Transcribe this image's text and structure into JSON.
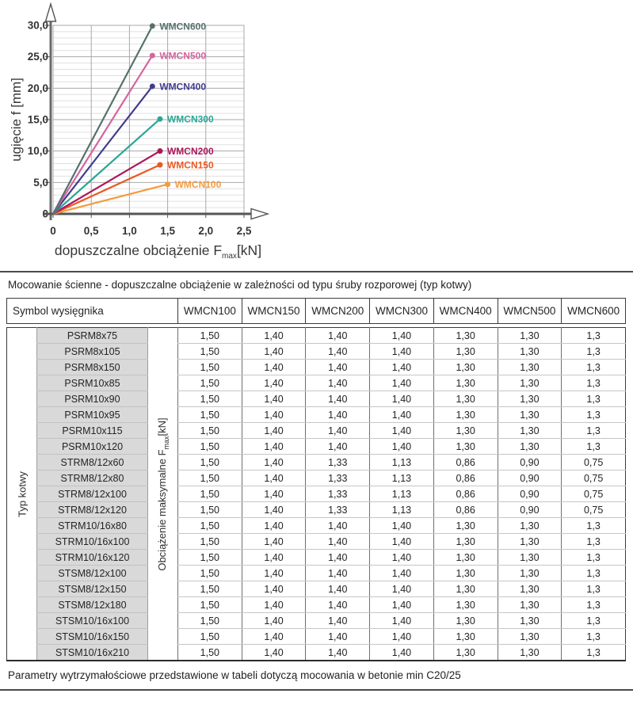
{
  "page": {
    "captions": {
      "top": "Mocowanie ścienne - dopuszczalne obciążenie w zależności od typu śruby rozporowej (typ kotwy)",
      "bottom": "Parametry wytrzymałościowe przedstawione w tabeli dotyczą mocowania w betonie min C20/25"
    }
  },
  "chart_data": {
    "type": "line",
    "title": "",
    "xlabel": {
      "main": "dopuszczalne obciążenie F",
      "sub": "max",
      "unit": "[kN]"
    },
    "ylabel": "ugięcie f [mm]",
    "xlim": [
      0,
      2.5
    ],
    "ylim": [
      0,
      30
    ],
    "x_tick_values": [
      0,
      0.5,
      1.0,
      1.5,
      2.0,
      2.5
    ],
    "x_tick_labels": [
      "0",
      "0,5",
      "1,0",
      "1,5",
      "2,0",
      "2,5"
    ],
    "y_tick_values": [
      0,
      5,
      10,
      15,
      20,
      25,
      30
    ],
    "y_tick_labels": [
      "0",
      "5,0",
      "10,0",
      "15,0",
      "20,0",
      "25,0",
      "30,0"
    ],
    "grid": {
      "x_major": 0.5,
      "y_major": 5,
      "y_minor": 1,
      "on": true
    },
    "legend_position": "inline-labels-at-line-ends",
    "series": [
      {
        "name": "WMCN100",
        "color": "#f59b3c",
        "points": [
          [
            0,
            0
          ],
          [
            1.5,
            4.7
          ]
        ]
      },
      {
        "name": "WMCN150",
        "color": "#e85a24",
        "points": [
          [
            0,
            0
          ],
          [
            1.4,
            7.8
          ]
        ]
      },
      {
        "name": "WMCN200",
        "color": "#ab1659",
        "points": [
          [
            0,
            0
          ],
          [
            1.4,
            10.0
          ]
        ]
      },
      {
        "name": "WMCN300",
        "color": "#2aa795",
        "points": [
          [
            0,
            0
          ],
          [
            1.4,
            15.1
          ]
        ]
      },
      {
        "name": "WMCN400",
        "color": "#403c8e",
        "points": [
          [
            0,
            0
          ],
          [
            1.3,
            20.3
          ]
        ]
      },
      {
        "name": "WMCN500",
        "color": "#d4659e",
        "points": [
          [
            0,
            0
          ],
          [
            1.3,
            25.2
          ]
        ]
      },
      {
        "name": "WMCN600",
        "color": "#56716d",
        "points": [
          [
            0,
            0
          ],
          [
            1.3,
            29.9
          ]
        ]
      }
    ]
  },
  "table": {
    "symbol_header": "Symbol wysięgnika",
    "models": [
      "WMCN100",
      "WMCN150",
      "WMCN200",
      "WMCN300",
      "WMCN400",
      "WMCN500",
      "WMCN600"
    ],
    "group_label": "Typ kotwy",
    "load_label": {
      "main": "Obciążenie maksymalne F",
      "sub": "max",
      "unit": "[kN]"
    },
    "rows": [
      {
        "name": "PSRM8x75",
        "values": [
          "1,50",
          "1,40",
          "1,40",
          "1,40",
          "1,30",
          "1,30",
          "1,3"
        ]
      },
      {
        "name": "PSRM8x105",
        "values": [
          "1,50",
          "1,40",
          "1,40",
          "1,40",
          "1,30",
          "1,30",
          "1,3"
        ]
      },
      {
        "name": "PSRM8x150",
        "values": [
          "1,50",
          "1,40",
          "1,40",
          "1,40",
          "1,30",
          "1,30",
          "1,3"
        ]
      },
      {
        "name": "PSRM10x85",
        "values": [
          "1,50",
          "1,40",
          "1,40",
          "1,40",
          "1,30",
          "1,30",
          "1,3"
        ]
      },
      {
        "name": "PSRM10x90",
        "values": [
          "1,50",
          "1,40",
          "1,40",
          "1,40",
          "1,30",
          "1,30",
          "1,3"
        ]
      },
      {
        "name": "PSRM10x95",
        "values": [
          "1,50",
          "1,40",
          "1,40",
          "1,40",
          "1,30",
          "1,30",
          "1,3"
        ]
      },
      {
        "name": "PSRM10x115",
        "values": [
          "1,50",
          "1,40",
          "1,40",
          "1,40",
          "1,30",
          "1,30",
          "1,3"
        ]
      },
      {
        "name": "PSRM10x120",
        "values": [
          "1,50",
          "1,40",
          "1,40",
          "1,40",
          "1,30",
          "1,30",
          "1,3"
        ]
      },
      {
        "name": "STRM8/12x60",
        "values": [
          "1,50",
          "1,40",
          "1,33",
          "1,13",
          "0,86",
          "0,90",
          "0,75"
        ]
      },
      {
        "name": "STRM8/12x80",
        "values": [
          "1,50",
          "1,40",
          "1,33",
          "1,13",
          "0,86",
          "0,90",
          "0,75"
        ]
      },
      {
        "name": "STRM8/12x100",
        "values": [
          "1,50",
          "1,40",
          "1,33",
          "1,13",
          "0,86",
          "0,90",
          "0,75"
        ]
      },
      {
        "name": "STRM8/12x120",
        "values": [
          "1,50",
          "1,40",
          "1,33",
          "1,13",
          "0,86",
          "0,90",
          "0,75"
        ]
      },
      {
        "name": "STRM10/16x80",
        "values": [
          "1,50",
          "1,40",
          "1,40",
          "1,40",
          "1,30",
          "1,30",
          "1,3"
        ]
      },
      {
        "name": "STRM10/16x100",
        "values": [
          "1,50",
          "1,40",
          "1,40",
          "1,40",
          "1,30",
          "1,30",
          "1,3"
        ]
      },
      {
        "name": "STRM10/16x120",
        "values": [
          "1,50",
          "1,40",
          "1,40",
          "1,40",
          "1,30",
          "1,30",
          "1,3"
        ]
      },
      {
        "name": "STSM8/12x100",
        "values": [
          "1,50",
          "1,40",
          "1,40",
          "1,40",
          "1,30",
          "1,30",
          "1,3"
        ]
      },
      {
        "name": "STSM8/12x150",
        "values": [
          "1,50",
          "1,40",
          "1,40",
          "1,40",
          "1,30",
          "1,30",
          "1,3"
        ]
      },
      {
        "name": "STSM8/12x180",
        "values": [
          "1,50",
          "1,40",
          "1,40",
          "1,40",
          "1,30",
          "1,30",
          "1,3"
        ]
      },
      {
        "name": "STSM10/16x100",
        "values": [
          "1,50",
          "1,40",
          "1,40",
          "1,40",
          "1,30",
          "1,30",
          "1,3"
        ]
      },
      {
        "name": "STSM10/16x150",
        "values": [
          "1,50",
          "1,40",
          "1,40",
          "1,40",
          "1,30",
          "1,30",
          "1,3"
        ]
      },
      {
        "name": "STSM10/16x210",
        "values": [
          "1,50",
          "1,40",
          "1,40",
          "1,40",
          "1,30",
          "1,30",
          "1,3"
        ]
      }
    ]
  }
}
